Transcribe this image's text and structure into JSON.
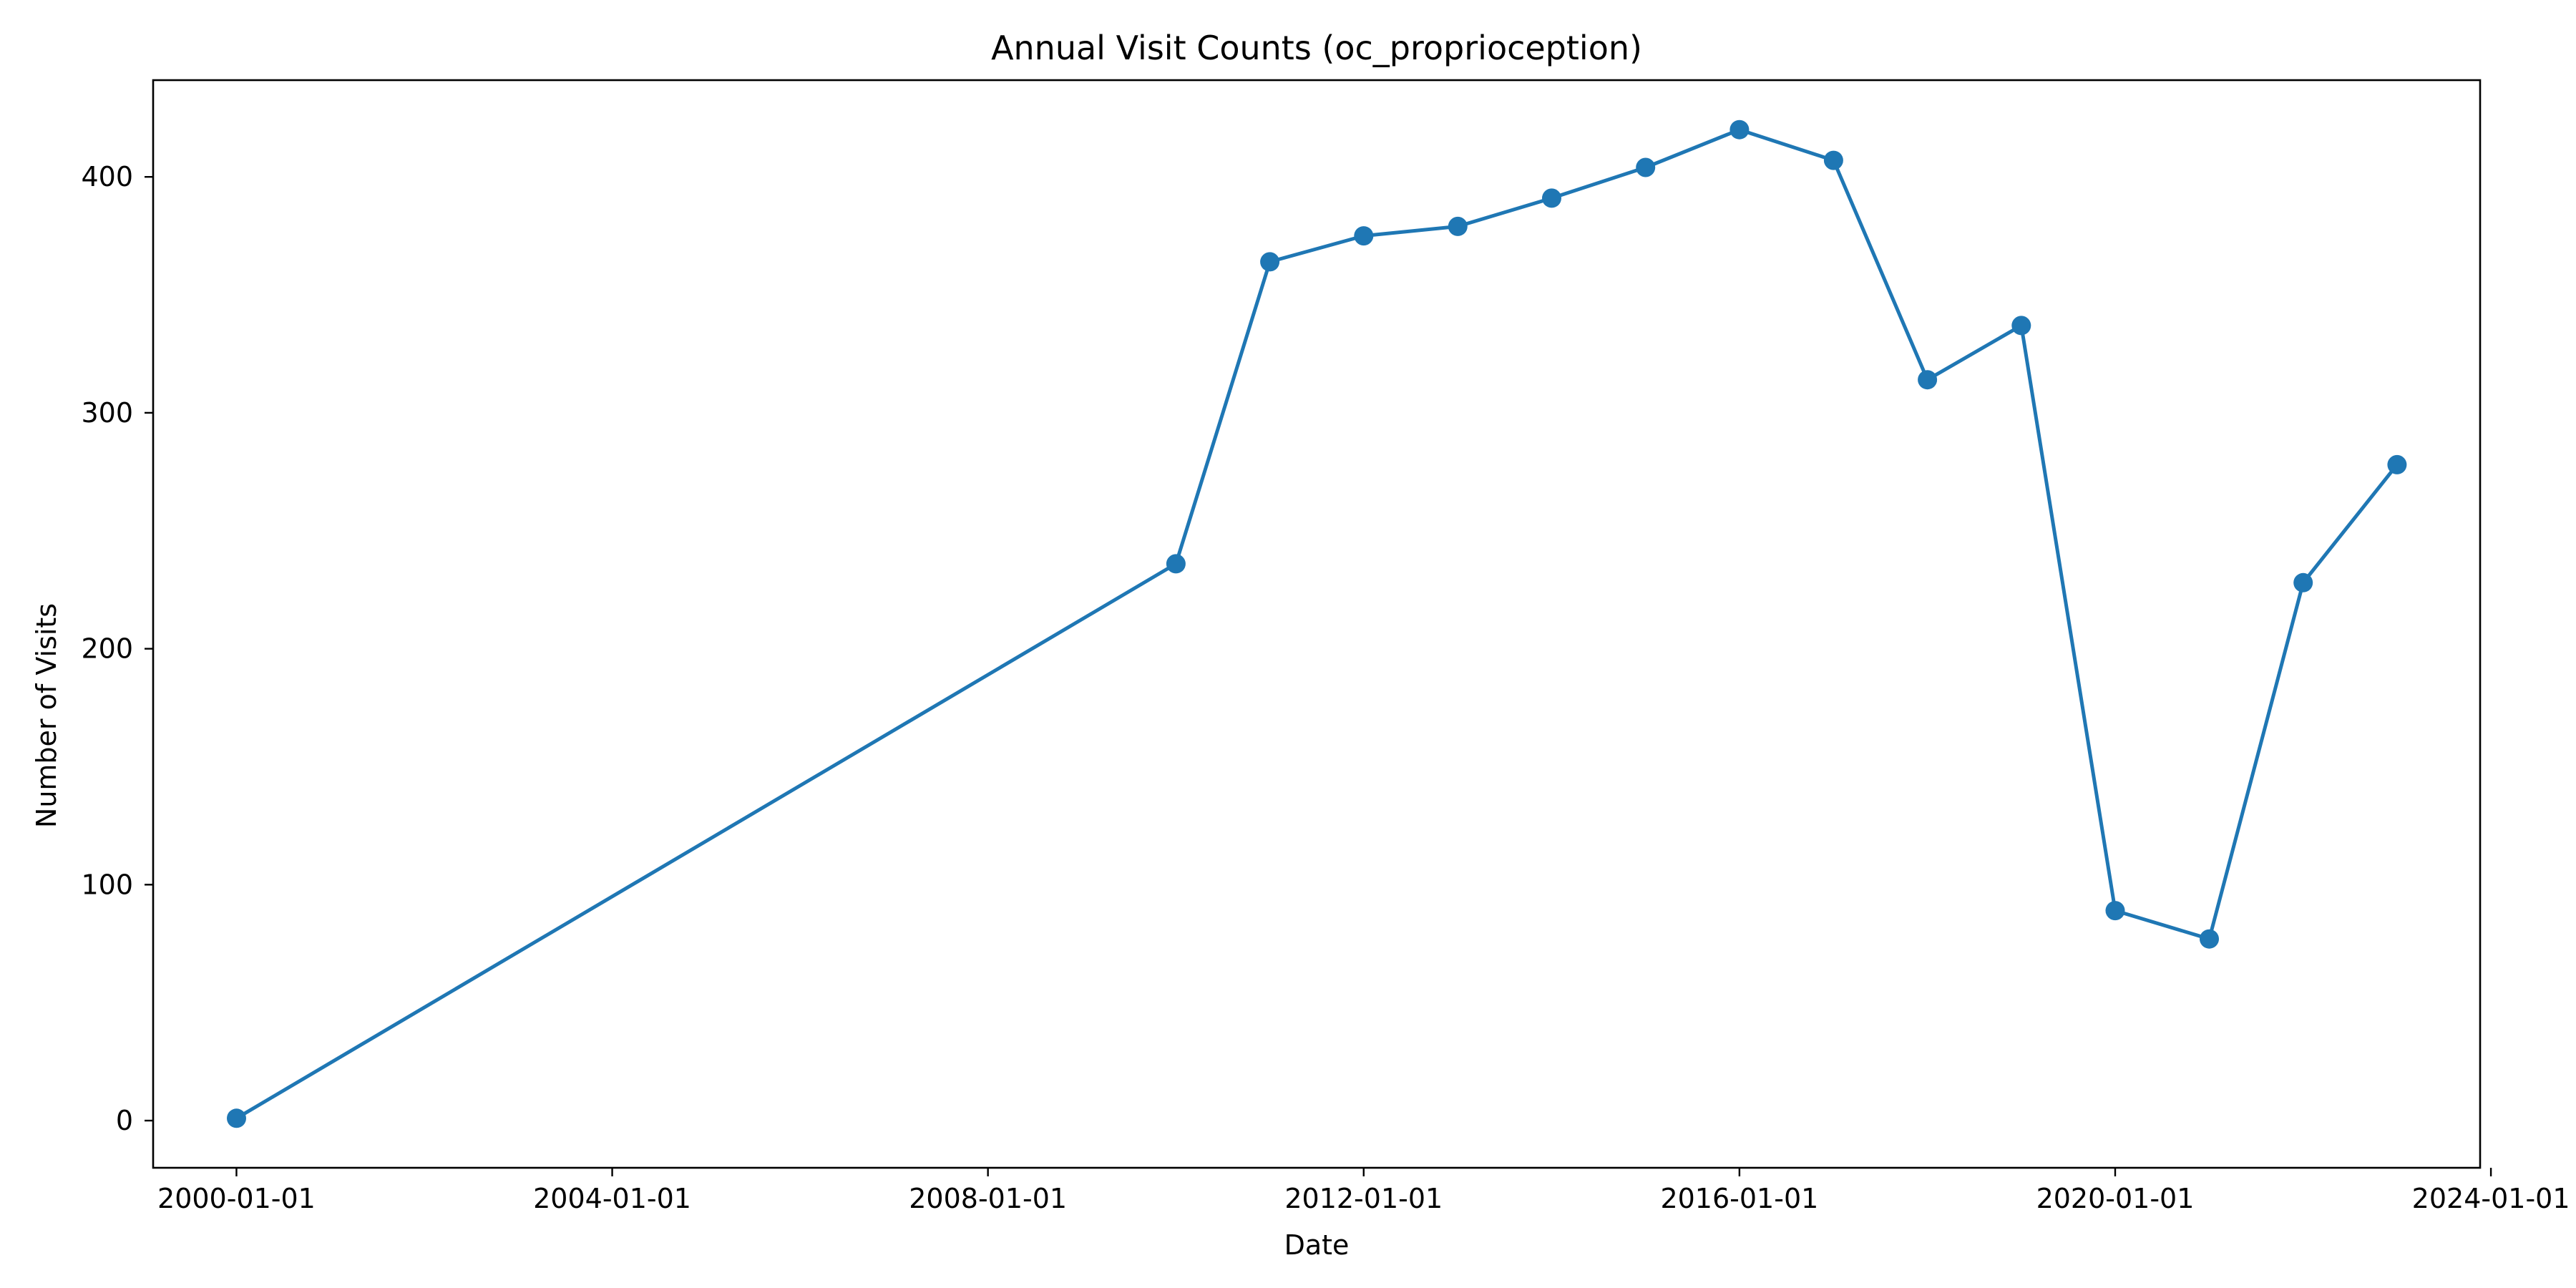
{
  "chart_data": {
    "type": "line",
    "title": "Annual Visit Counts (oc_proprioception)",
    "xlabel": "Date",
    "ylabel": "Number of Visits",
    "x_type": "date",
    "xlim": [
      "1999-02-11",
      "2023-11-20"
    ],
    "ylim": [
      -20,
      441
    ],
    "x_ticks": [
      "2000-01-01",
      "2004-01-01",
      "2008-01-01",
      "2012-01-01",
      "2016-01-01",
      "2020-01-01",
      "2024-01-01"
    ],
    "y_ticks": [
      0,
      100,
      200,
      300,
      400
    ],
    "grid": false,
    "legend": false,
    "color": "#1f77b4",
    "series": [
      {
        "x": [
          "2000-01-01",
          "2010-01-01",
          "2011-01-01",
          "2012-01-01",
          "2013-01-01",
          "2014-01-01",
          "2015-01-01",
          "2016-01-01",
          "2017-01-01",
          "2018-01-01",
          "2019-01-01",
          "2020-01-01",
          "2021-01-01",
          "2022-01-01",
          "2023-01-01"
        ],
        "values": [
          1,
          236,
          364,
          375,
          379,
          391,
          404,
          420,
          407,
          314,
          337,
          89,
          77,
          228,
          278
        ]
      }
    ]
  }
}
